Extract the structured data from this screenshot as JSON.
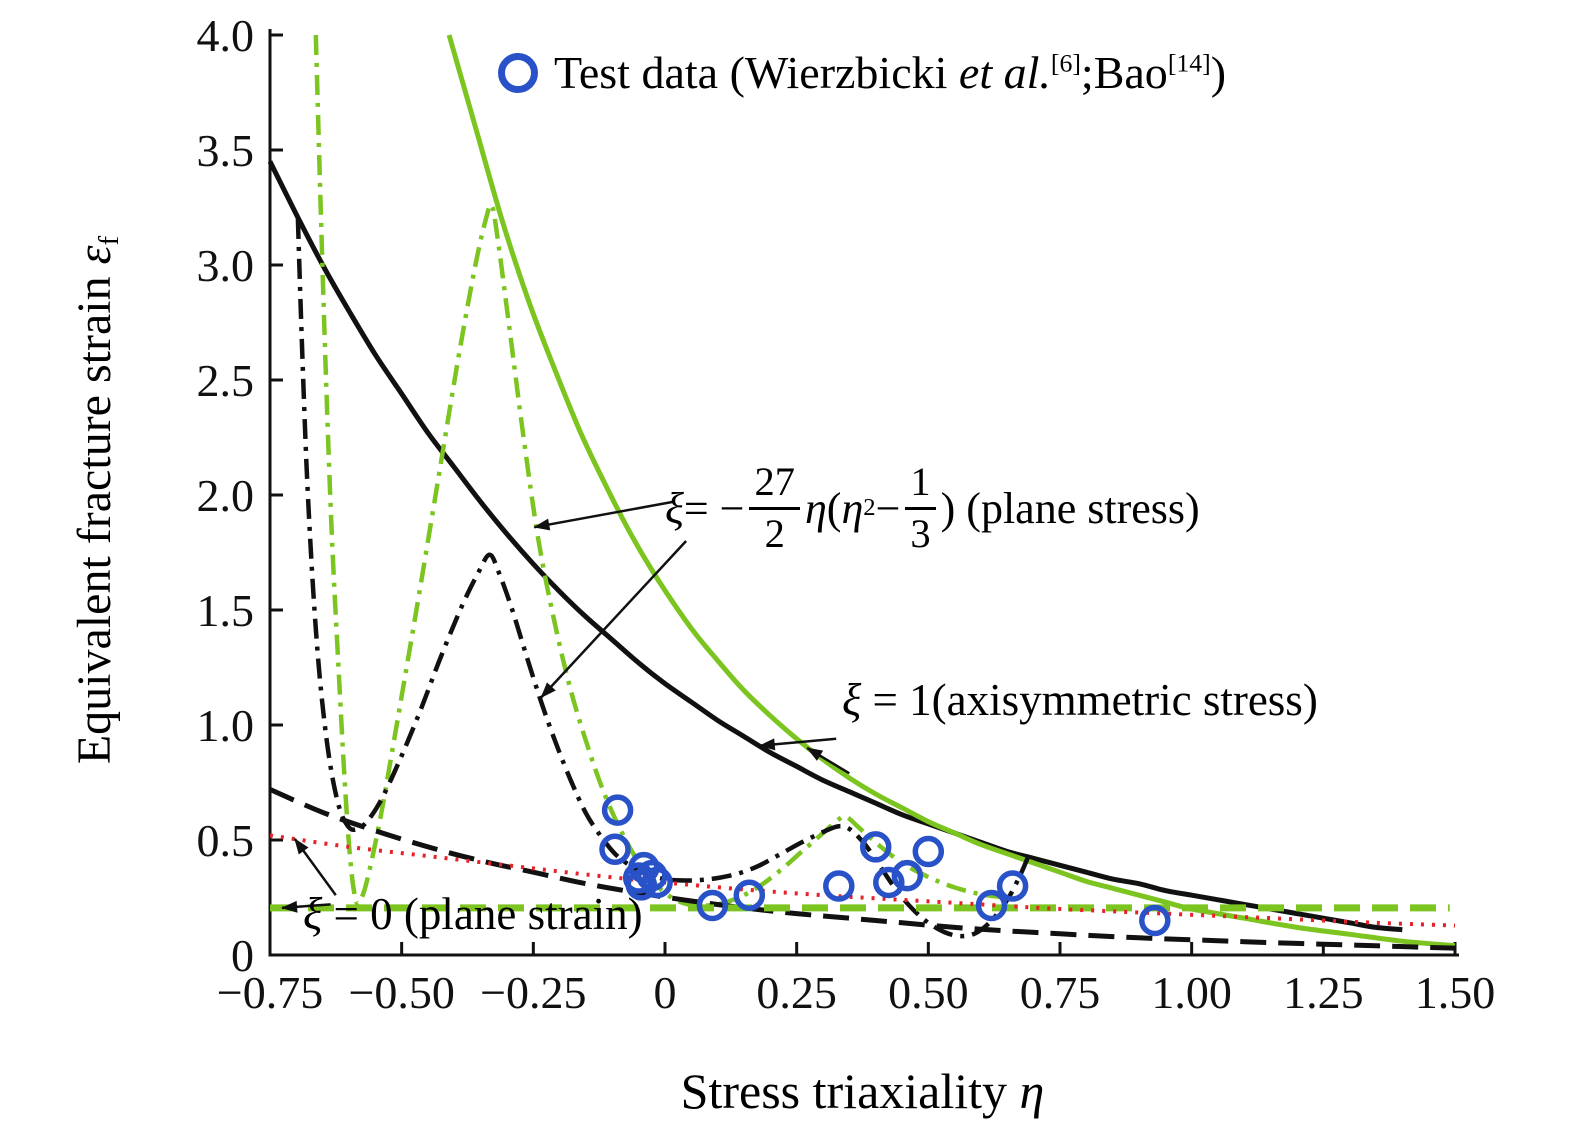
{
  "chart_data": {
    "type": "line",
    "title": "",
    "xlabel": "Stress triaxiality η",
    "ylabel": "Equivalent fracture strain εf",
    "xlim": [
      -0.75,
      1.5
    ],
    "ylim": [
      0,
      4
    ],
    "grid": false,
    "legend_position": "top-center",
    "colors": {
      "green": "#7cc41f",
      "blue": "#2952c8",
      "red": "#e62129",
      "black": "#111111"
    },
    "x_ticks": [
      {
        "v": -0.75,
        "label": "−0.75"
      },
      {
        "v": -0.5,
        "label": "−0.50"
      },
      {
        "v": -0.25,
        "label": "−0.25"
      },
      {
        "v": 0,
        "label": "0"
      },
      {
        "v": 0.25,
        "label": "0.25"
      },
      {
        "v": 0.5,
        "label": "0.50"
      },
      {
        "v": 0.75,
        "label": "0.75"
      },
      {
        "v": 1.0,
        "label": "1.00"
      },
      {
        "v": 1.25,
        "label": "1.25"
      },
      {
        "v": 1.5,
        "label": "1.50"
      }
    ],
    "y_ticks": [
      {
        "v": 0,
        "label": "0"
      },
      {
        "v": 0.5,
        "label": "0.5"
      },
      {
        "v": 1.0,
        "label": "1.0"
      },
      {
        "v": 1.5,
        "label": "1.5"
      },
      {
        "v": 2.0,
        "label": "2.0"
      },
      {
        "v": 2.5,
        "label": "2.5"
      },
      {
        "v": 3.0,
        "label": "3.0"
      },
      {
        "v": 3.5,
        "label": "3.5"
      },
      {
        "v": 4.0,
        "label": "4.0"
      }
    ],
    "labels": {
      "legend": {
        "full": "Test data (Wierzbicki et al.[6];Bao[14])",
        "prefix": "Test data (Wierzbicki ",
        "etal": "et al.",
        "ref1": "[6]",
        "mid": ";Bao",
        "ref2": "[14]",
        "suffix": ")"
      },
      "plane_stress": {
        "full": "ξ = −27/2 η (η² − 1/3) (plane stress)",
        "xi": "ξ",
        "eq": " = −",
        "frac1_num": "27",
        "frac1_den": "2",
        "eta": "η",
        "open": " (",
        "eta2": "η",
        "sup": "2",
        "minus": " − ",
        "frac2_num": "1",
        "frac2_den": "3",
        "suffix": ") (plane stress)"
      },
      "axisymmetric": {
        "xi": "ξ",
        "rest": " = 1(axisymmetric stress)"
      },
      "plane_strain": {
        "xi": "ξ",
        "rest": " = 0 (plane strain)"
      },
      "x_title": {
        "prefix": "Stress triaxiality ",
        "symbol": "η"
      },
      "y_title": {
        "prefix": "Equivalent fracture strain ",
        "symbol": "ε",
        "sub": "f"
      }
    },
    "series": [
      {
        "name": "axisymmetric-black-curve",
        "color": "black",
        "linestyle": "solid",
        "width": 5,
        "smooth": true,
        "points": [
          [
            -0.75,
            3.45
          ],
          [
            -0.7,
            3.22
          ],
          [
            -0.65,
            3.0
          ],
          [
            -0.6,
            2.8
          ],
          [
            -0.55,
            2.61
          ],
          [
            -0.5,
            2.44
          ],
          [
            -0.45,
            2.27
          ],
          [
            -0.4,
            2.12
          ],
          [
            -0.35,
            1.97
          ],
          [
            -0.3,
            1.83
          ],
          [
            -0.25,
            1.7
          ],
          [
            -0.2,
            1.58
          ],
          [
            -0.15,
            1.47
          ],
          [
            -0.1,
            1.37
          ],
          [
            -0.05,
            1.27
          ],
          [
            0,
            1.18
          ],
          [
            0.05,
            1.1
          ],
          [
            0.1,
            1.02
          ],
          [
            0.15,
            0.95
          ],
          [
            0.2,
            0.88
          ],
          [
            0.25,
            0.82
          ],
          [
            0.3,
            0.76
          ],
          [
            0.35,
            0.71
          ],
          [
            0.4,
            0.66
          ],
          [
            0.45,
            0.61
          ],
          [
            0.5,
            0.57
          ],
          [
            0.55,
            0.53
          ],
          [
            0.6,
            0.49
          ],
          [
            0.65,
            0.45
          ],
          [
            0.7,
            0.42
          ],
          [
            0.75,
            0.39
          ],
          [
            0.8,
            0.36
          ],
          [
            0.85,
            0.33
          ],
          [
            0.9,
            0.31
          ],
          [
            0.95,
            0.28
          ],
          [
            1.0,
            0.26
          ],
          [
            1.05,
            0.24
          ],
          [
            1.1,
            0.22
          ],
          [
            1.15,
            0.2
          ],
          [
            1.2,
            0.18
          ],
          [
            1.25,
            0.16
          ],
          [
            1.3,
            0.14
          ],
          [
            1.35,
            0.12
          ],
          [
            1.4,
            0.11
          ]
        ]
      },
      {
        "name": "axisymmetric-green-curve",
        "color": "green",
        "linestyle": "solid",
        "width": 5,
        "smooth": true,
        "points": [
          [
            -0.41,
            4.0
          ],
          [
            -0.36,
            3.6
          ],
          [
            -0.31,
            3.2
          ],
          [
            -0.26,
            2.85
          ],
          [
            -0.21,
            2.55
          ],
          [
            -0.16,
            2.27
          ],
          [
            -0.11,
            2.03
          ],
          [
            -0.06,
            1.81
          ],
          [
            -0.01,
            1.62
          ],
          [
            0.05,
            1.42
          ],
          [
            0.1,
            1.28
          ],
          [
            0.15,
            1.15
          ],
          [
            0.2,
            1.04
          ],
          [
            0.25,
            0.94
          ],
          [
            0.3,
            0.85
          ],
          [
            0.35,
            0.77
          ],
          [
            0.4,
            0.7
          ],
          [
            0.45,
            0.64
          ],
          [
            0.5,
            0.58
          ],
          [
            0.55,
            0.53
          ],
          [
            0.6,
            0.48
          ],
          [
            0.65,
            0.44
          ],
          [
            0.7,
            0.4
          ],
          [
            0.75,
            0.36
          ],
          [
            0.8,
            0.32
          ],
          [
            0.85,
            0.29
          ],
          [
            0.9,
            0.26
          ],
          [
            0.95,
            0.23
          ],
          [
            1.0,
            0.2
          ],
          [
            1.1,
            0.16
          ],
          [
            1.2,
            0.12
          ],
          [
            1.3,
            0.09
          ],
          [
            1.4,
            0.06
          ],
          [
            1.5,
            0.04
          ]
        ]
      },
      {
        "name": "plane-stress-green-curve",
        "color": "green",
        "linestyle": "dashdot",
        "width": 4.5,
        "smooth": true,
        "points": [
          [
            -0.663,
            4.0
          ],
          [
            -0.655,
            3.35
          ],
          [
            -0.645,
            2.6
          ],
          [
            -0.633,
            1.85
          ],
          [
            -0.62,
            1.25
          ],
          [
            -0.608,
            0.75
          ],
          [
            -0.597,
            0.4
          ],
          [
            -0.586,
            0.23
          ],
          [
            -0.574,
            0.26
          ],
          [
            -0.558,
            0.4
          ],
          [
            -0.536,
            0.65
          ],
          [
            -0.508,
            1.02
          ],
          [
            -0.472,
            1.5
          ],
          [
            -0.432,
            2.05
          ],
          [
            -0.392,
            2.6
          ],
          [
            -0.36,
            3.0
          ],
          [
            -0.34,
            3.2
          ],
          [
            -0.329,
            3.26
          ],
          [
            -0.318,
            3.12
          ],
          [
            -0.295,
            2.72
          ],
          [
            -0.268,
            2.24
          ],
          [
            -0.24,
            1.8
          ],
          [
            -0.21,
            1.45
          ],
          [
            -0.18,
            1.16
          ],
          [
            -0.15,
            0.93
          ],
          [
            -0.12,
            0.73
          ],
          [
            -0.09,
            0.57
          ],
          [
            -0.06,
            0.44
          ],
          [
            -0.03,
            0.34
          ],
          [
            0,
            0.27
          ],
          [
            0.03,
            0.23
          ],
          [
            0.06,
            0.215
          ],
          [
            0.1,
            0.22
          ],
          [
            0.14,
            0.25
          ],
          [
            0.18,
            0.3
          ],
          [
            0.22,
            0.37
          ],
          [
            0.26,
            0.45
          ],
          [
            0.3,
            0.53
          ],
          [
            0.33,
            0.59
          ],
          [
            0.345,
            0.6
          ],
          [
            0.37,
            0.55
          ],
          [
            0.41,
            0.47
          ],
          [
            0.45,
            0.4
          ],
          [
            0.49,
            0.35
          ],
          [
            0.53,
            0.31
          ],
          [
            0.57,
            0.28
          ],
          [
            0.61,
            0.26
          ],
          [
            0.65,
            0.25
          ],
          [
            0.67,
            0.245
          ]
        ]
      },
      {
        "name": "plane-stress-black-curve",
        "color": "black",
        "linestyle": "dashdot",
        "width": 4.5,
        "smooth": true,
        "points": [
          [
            -0.697,
            3.2
          ],
          [
            -0.69,
            2.7
          ],
          [
            -0.681,
            2.15
          ],
          [
            -0.671,
            1.7
          ],
          [
            -0.659,
            1.3
          ],
          [
            -0.646,
            1.0
          ],
          [
            -0.632,
            0.78
          ],
          [
            -0.617,
            0.63
          ],
          [
            -0.602,
            0.56
          ],
          [
            -0.588,
            0.545
          ],
          [
            -0.568,
            0.575
          ],
          [
            -0.54,
            0.67
          ],
          [
            -0.505,
            0.84
          ],
          [
            -0.465,
            1.06
          ],
          [
            -0.425,
            1.3
          ],
          [
            -0.385,
            1.52
          ],
          [
            -0.355,
            1.66
          ],
          [
            -0.333,
            1.74
          ],
          [
            -0.315,
            1.66
          ],
          [
            -0.29,
            1.5
          ],
          [
            -0.263,
            1.3
          ],
          [
            -0.235,
            1.1
          ],
          [
            -0.207,
            0.92
          ],
          [
            -0.179,
            0.76
          ],
          [
            -0.151,
            0.62
          ],
          [
            -0.123,
            0.52
          ],
          [
            -0.095,
            0.44
          ],
          [
            -0.067,
            0.39
          ],
          [
            -0.039,
            0.355
          ],
          [
            -0.011,
            0.335
          ],
          [
            0.02,
            0.325
          ],
          [
            0.06,
            0.325
          ],
          [
            0.1,
            0.335
          ],
          [
            0.14,
            0.355
          ],
          [
            0.18,
            0.39
          ],
          [
            0.22,
            0.44
          ],
          [
            0.26,
            0.49
          ],
          [
            0.3,
            0.535
          ],
          [
            0.33,
            0.56
          ],
          [
            0.352,
            0.545
          ],
          [
            0.38,
            0.48
          ],
          [
            0.41,
            0.38
          ],
          [
            0.44,
            0.28
          ],
          [
            0.47,
            0.2
          ],
          [
            0.5,
            0.14
          ],
          [
            0.53,
            0.1
          ],
          [
            0.56,
            0.082
          ],
          [
            0.59,
            0.095
          ],
          [
            0.62,
            0.15
          ],
          [
            0.65,
            0.24
          ],
          [
            0.675,
            0.35
          ],
          [
            0.69,
            0.43
          ]
        ]
      },
      {
        "name": "plane-strain-black-curve",
        "color": "black",
        "linestyle": "dashed",
        "width": 5,
        "smooth": true,
        "points": [
          [
            -0.75,
            0.72
          ],
          [
            -0.65,
            0.62
          ],
          [
            -0.55,
            0.54
          ],
          [
            -0.45,
            0.47
          ],
          [
            -0.35,
            0.41
          ],
          [
            -0.25,
            0.36
          ],
          [
            -0.15,
            0.31
          ],
          [
            -0.05,
            0.27
          ],
          [
            0.05,
            0.235
          ],
          [
            0.15,
            0.205
          ],
          [
            0.25,
            0.18
          ],
          [
            0.35,
            0.16
          ],
          [
            0.45,
            0.14
          ],
          [
            0.55,
            0.12
          ],
          [
            0.65,
            0.105
          ],
          [
            0.75,
            0.092
          ],
          [
            0.85,
            0.08
          ],
          [
            0.95,
            0.07
          ],
          [
            1.05,
            0.062
          ],
          [
            1.15,
            0.054
          ],
          [
            1.25,
            0.047
          ],
          [
            1.35,
            0.04
          ],
          [
            1.45,
            0.033
          ],
          [
            1.5,
            0.03
          ]
        ]
      },
      {
        "name": "plane-strain-green-line",
        "color": "green",
        "linestyle": "dashed",
        "width": 7,
        "smooth": false,
        "points": [
          [
            -0.75,
            0.205
          ],
          [
            1.49,
            0.205
          ]
        ]
      },
      {
        "name": "plane-strain-red-line",
        "color": "red",
        "linestyle": "dotted",
        "width": 4,
        "smooth": true,
        "points": [
          [
            -0.75,
            0.52
          ],
          [
            -0.6,
            0.47
          ],
          [
            -0.45,
            0.43
          ],
          [
            -0.3,
            0.39
          ],
          [
            -0.15,
            0.35
          ],
          [
            0,
            0.315
          ],
          [
            0.15,
            0.285
          ],
          [
            0.3,
            0.26
          ],
          [
            0.45,
            0.24
          ],
          [
            0.6,
            0.22
          ],
          [
            0.75,
            0.2
          ],
          [
            0.9,
            0.185
          ],
          [
            1.05,
            0.17
          ],
          [
            1.2,
            0.155
          ],
          [
            1.35,
            0.14
          ],
          [
            1.5,
            0.128
          ]
        ]
      }
    ],
    "scatter": {
      "name": "test-data",
      "marker": "open-circle",
      "color": "blue",
      "points": [
        [
          -0.09,
          0.63
        ],
        [
          -0.095,
          0.46
        ],
        [
          -0.04,
          0.38
        ],
        [
          -0.05,
          0.335
        ],
        [
          -0.025,
          0.345
        ],
        [
          -0.045,
          0.305
        ],
        [
          -0.015,
          0.315
        ],
        [
          0.09,
          0.215
        ],
        [
          0.16,
          0.26
        ],
        [
          0.33,
          0.3
        ],
        [
          0.4,
          0.47
        ],
        [
          0.425,
          0.315
        ],
        [
          0.46,
          0.345
        ],
        [
          0.5,
          0.45
        ],
        [
          0.62,
          0.215
        ],
        [
          0.66,
          0.3
        ],
        [
          0.93,
          0.15
        ]
      ]
    },
    "arrows": [
      {
        "from": [
          0.015,
          1.97
        ],
        "to": [
          -0.248,
          1.86
        ]
      },
      {
        "from": [
          0.04,
          1.8
        ],
        "to": [
          -0.235,
          1.12
        ]
      },
      {
        "from": [
          0.325,
          0.94
        ],
        "to": [
          0.18,
          0.91
        ]
      },
      {
        "from": [
          0.35,
          0.79
        ],
        "to": [
          0.27,
          0.9
        ]
      },
      {
        "from": [
          -0.625,
          0.26
        ],
        "to": [
          -0.703,
          0.505
        ]
      },
      {
        "from": [
          -0.635,
          0.22
        ],
        "to": [
          -0.727,
          0.205
        ]
      }
    ]
  }
}
